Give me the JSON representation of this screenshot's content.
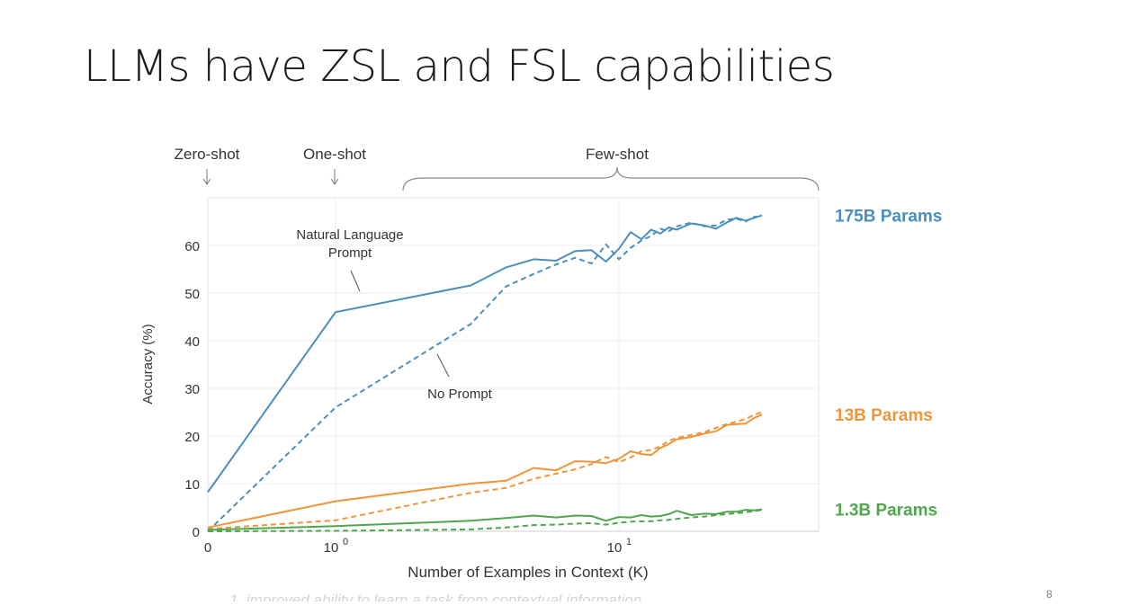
{
  "slide": {
    "title": "LLMs have ZSL and FSL capabilities",
    "page_number": "8",
    "caption": "1.   improved ability to learn a task from contextual information"
  },
  "chart_data": {
    "type": "line",
    "xlabel": "Number of Examples in Context  (K)",
    "ylabel": "Accuracy (%)",
    "x_scale": "symlog",
    "xlim": [
      0,
      32
    ],
    "ylim": [
      0,
      70
    ],
    "grid": true,
    "x_ticks": [
      {
        "value": 0,
        "base": "0",
        "exp": ""
      },
      {
        "value": 1,
        "base": "10",
        "exp": "0"
      },
      {
        "value": 10,
        "base": "10",
        "exp": "1"
      }
    ],
    "y_ticks": [
      0,
      10,
      20,
      30,
      40,
      50,
      60
    ],
    "regime_labels": [
      {
        "text": "Zero-shot",
        "at": 0,
        "arrow": true
      },
      {
        "text": "One-shot",
        "at": 1,
        "arrow": true
      },
      {
        "text": "Few-shot",
        "from": 2,
        "to": 32,
        "brace": true
      }
    ],
    "annotations": [
      {
        "text": [
          "Natural Language",
          "Prompt"
        ],
        "series": "175B Params",
        "style": "solid"
      },
      {
        "text": [
          "No Prompt"
        ],
        "series": "175B Params",
        "style": "dashed"
      }
    ],
    "series": [
      {
        "name": "175B Params",
        "color": "#4a8fbd",
        "style": "solid",
        "points": [
          [
            0,
            8.2
          ],
          [
            1,
            46.0
          ],
          [
            3,
            51.6
          ],
          [
            4,
            55.4
          ],
          [
            5,
            57.1
          ],
          [
            6,
            56.8
          ],
          [
            7,
            58.8
          ],
          [
            8,
            59.0
          ],
          [
            9,
            56.6
          ],
          [
            10,
            59.3
          ],
          [
            11,
            62.8
          ],
          [
            12,
            61.3
          ],
          [
            13,
            63.3
          ],
          [
            14,
            62.5
          ],
          [
            15,
            63.8
          ],
          [
            16,
            63.3
          ],
          [
            18,
            64.6
          ],
          [
            20,
            64.2
          ],
          [
            22,
            63.5
          ],
          [
            24,
            64.8
          ],
          [
            26,
            65.8
          ],
          [
            28,
            65.2
          ],
          [
            30,
            65.8
          ],
          [
            32,
            66.3
          ]
        ]
      },
      {
        "name": "175B Params",
        "color": "#4a8fbd",
        "style": "dashed",
        "points": [
          [
            0,
            0
          ],
          [
            1,
            26.0
          ],
          [
            3,
            43.5
          ],
          [
            4,
            51.4
          ],
          [
            5,
            54.0
          ],
          [
            6,
            56.0
          ],
          [
            7,
            57.4
          ],
          [
            8,
            56.2
          ],
          [
            9,
            60.2
          ],
          [
            10,
            57.1
          ],
          [
            11,
            59.5
          ],
          [
            12,
            61.0
          ],
          [
            13,
            62.0
          ],
          [
            14,
            63.5
          ],
          [
            15,
            63.0
          ],
          [
            16,
            64.0
          ],
          [
            18,
            64.8
          ],
          [
            20,
            64.0
          ],
          [
            22,
            64.2
          ],
          [
            24,
            65.4
          ],
          [
            26,
            65.6
          ],
          [
            28,
            65.0
          ],
          [
            30,
            66.0
          ],
          [
            32,
            66.1
          ]
        ]
      },
      {
        "name": "13B Params",
        "color": "#f0953a",
        "style": "solid",
        "points": [
          [
            0,
            0.8
          ],
          [
            1,
            6.3
          ],
          [
            3,
            10.0
          ],
          [
            4,
            10.6
          ],
          [
            5,
            13.3
          ],
          [
            6,
            12.8
          ],
          [
            7,
            14.7
          ],
          [
            8,
            14.6
          ],
          [
            9,
            14.3
          ],
          [
            10,
            15.2
          ],
          [
            11,
            16.8
          ],
          [
            12,
            16.2
          ],
          [
            13,
            16.0
          ],
          [
            14,
            17.5
          ],
          [
            15,
            18.3
          ],
          [
            16,
            19.3
          ],
          [
            18,
            19.8
          ],
          [
            20,
            20.5
          ],
          [
            22,
            21.0
          ],
          [
            24,
            22.3
          ],
          [
            26,
            22.5
          ],
          [
            28,
            22.6
          ],
          [
            30,
            23.8
          ],
          [
            32,
            24.5
          ]
        ]
      },
      {
        "name": "13B Params",
        "color": "#f0953a",
        "style": "dashed",
        "points": [
          [
            0,
            0.5
          ],
          [
            1,
            2.3
          ],
          [
            3,
            8.1
          ],
          [
            4,
            9.1
          ],
          [
            5,
            11.0
          ],
          [
            6,
            12.1
          ],
          [
            7,
            13.0
          ],
          [
            8,
            14.1
          ],
          [
            9,
            15.6
          ],
          [
            10,
            14.5
          ],
          [
            11,
            15.5
          ],
          [
            12,
            16.8
          ],
          [
            13,
            17.1
          ],
          [
            14,
            17.8
          ],
          [
            15,
            19.0
          ],
          [
            16,
            19.6
          ],
          [
            18,
            20.2
          ],
          [
            20,
            20.8
          ],
          [
            22,
            21.7
          ],
          [
            24,
            22.5
          ],
          [
            26,
            23.0
          ],
          [
            28,
            23.6
          ],
          [
            30,
            24.4
          ],
          [
            32,
            25.1
          ]
        ]
      },
      {
        "name": "1.3B Params",
        "color": "#4fa64f",
        "style": "solid",
        "points": [
          [
            0,
            0.3
          ],
          [
            1,
            1.1
          ],
          [
            3,
            2.2
          ],
          [
            4,
            2.8
          ],
          [
            5,
            3.3
          ],
          [
            6,
            2.9
          ],
          [
            7,
            3.3
          ],
          [
            8,
            3.2
          ],
          [
            9,
            2.2
          ],
          [
            10,
            3.0
          ],
          [
            11,
            2.9
          ],
          [
            12,
            3.4
          ],
          [
            13,
            3.1
          ],
          [
            14,
            3.2
          ],
          [
            15,
            3.6
          ],
          [
            16,
            4.3
          ],
          [
            18,
            3.4
          ],
          [
            20,
            3.7
          ],
          [
            22,
            3.6
          ],
          [
            24,
            4.1
          ],
          [
            26,
            4.1
          ],
          [
            28,
            4.5
          ],
          [
            30,
            4.4
          ],
          [
            32,
            4.6
          ]
        ]
      },
      {
        "name": "1.3B Params",
        "color": "#4fa64f",
        "style": "dashed",
        "points": [
          [
            0,
            0
          ],
          [
            1,
            0.1
          ],
          [
            3,
            0.4
          ],
          [
            4,
            0.8
          ],
          [
            5,
            1.3
          ],
          [
            6,
            1.4
          ],
          [
            7,
            1.6
          ],
          [
            8,
            1.7
          ],
          [
            9,
            1.4
          ],
          [
            10,
            1.8
          ],
          [
            11,
            2.0
          ],
          [
            12,
            2.1
          ],
          [
            13,
            2.1
          ],
          [
            14,
            2.3
          ],
          [
            15,
            2.4
          ],
          [
            16,
            2.6
          ],
          [
            18,
            2.9
          ],
          [
            20,
            3.1
          ],
          [
            22,
            3.4
          ],
          [
            24,
            3.6
          ],
          [
            26,
            3.8
          ],
          [
            28,
            4.0
          ],
          [
            30,
            4.2
          ],
          [
            32,
            4.5
          ]
        ]
      }
    ],
    "series_labels": [
      {
        "name": "175B Params",
        "color": "#4a8fbd",
        "y": 66.3
      },
      {
        "name": "13B Params",
        "color": "#f0953a",
        "y": 24.5
      },
      {
        "name": "1.3B Params",
        "color": "#4fa64f",
        "y": 4.6
      }
    ]
  }
}
